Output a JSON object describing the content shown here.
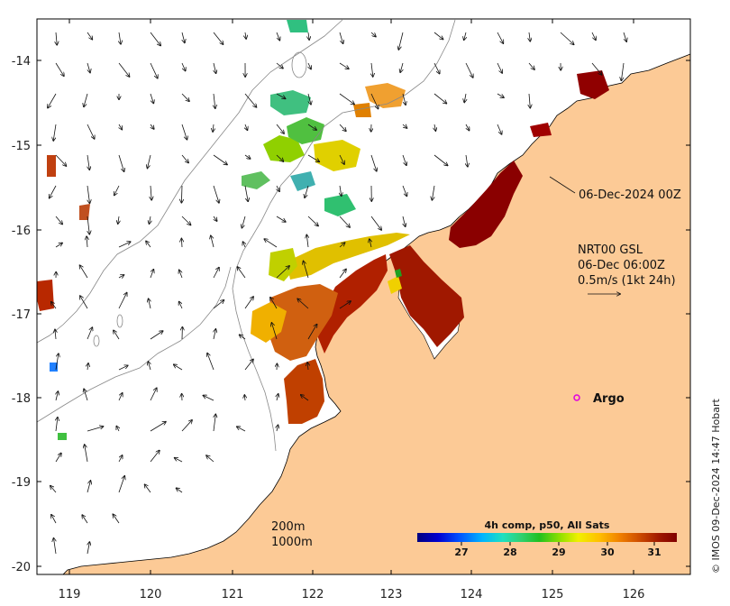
{
  "map": {
    "x_ticks": [
      "119",
      "120",
      "121",
      "122",
      "123",
      "124",
      "125",
      "126"
    ],
    "y_ticks": [
      "-14",
      "-15",
      "-16",
      "-17",
      "-18",
      "-19",
      "-20"
    ],
    "land_color": "#fcca96",
    "ocean_color": "#ffffff"
  },
  "annotations": {
    "date_label": "06-Dec-2024 00Z",
    "current_title": "NRT00 GSL",
    "current_time": "06-Dec 06:00Z",
    "current_scale": "0.5m/s (1kt 24h)",
    "argo_label": "Argo",
    "isobath_200": "200m",
    "isobath_1000": "1000m"
  },
  "colorbar": {
    "title": "4h comp, p50, All Sats",
    "ticks": [
      "27",
      "28",
      "29",
      "30",
      "31"
    ],
    "colors": [
      "#00007f",
      "#0000d0",
      "#0050ff",
      "#00b4ff",
      "#20e0c0",
      "#30d070",
      "#20c020",
      "#90e000",
      "#f0f000",
      "#ffc000",
      "#f08000",
      "#d05000",
      "#a01800",
      "#800000"
    ]
  },
  "credit": "© IMOS 09-Dec-2024 14:47 Hobart"
}
